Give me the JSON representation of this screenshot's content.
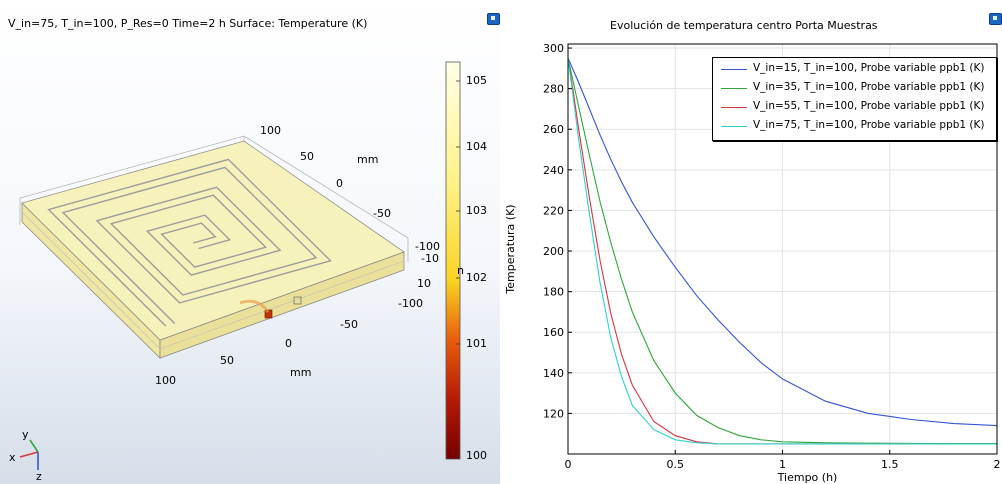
{
  "left_panel": {
    "title": "V_in=75, T_in=100, P_Res=0 Time=2 h   Surface: Temperature (K)",
    "colorbar": {
      "ticks": [
        "105",
        "104",
        "103",
        "102",
        "101",
        "100"
      ],
      "stray_label": "n",
      "colors": [
        "#ffffe6",
        "#fff28a",
        "#f9d423",
        "#e85d0d",
        "#b51a06",
        "#760000"
      ]
    },
    "axis_labels": {
      "y_axis_ticks": [
        "100",
        "50",
        "0",
        "-50",
        "-100"
      ],
      "x_axis_ticks": [
        "100",
        "50",
        "0",
        "-50",
        "-100"
      ],
      "z_axis_ticks": [
        "-10",
        "10"
      ],
      "unit_back": "mm",
      "unit_front": "mm"
    },
    "triad": {
      "y": "y",
      "x": "x",
      "z": "z"
    },
    "plate_color": "#f7f2b8",
    "channel_color": "#9c9c9c",
    "hotspot_color": "#c0320a"
  },
  "right_panel": {
    "title": "Evolución de temperatura centro Porta Muestras",
    "chart_data": {
      "type": "line",
      "title": "Evolución de temperatura centro Porta Muestras",
      "xlabel": "Tiempo (h)",
      "ylabel": "Temperatura (K)",
      "xlim": [
        0,
        2.0
      ],
      "ylim": [
        100,
        302
      ],
      "x_ticks": [
        "0",
        "0.5",
        "1",
        "1.5",
        "2"
      ],
      "y_ticks": [
        "120",
        "140",
        "160",
        "180",
        "200",
        "220",
        "240",
        "260",
        "280",
        "300"
      ],
      "grid": true,
      "legend_position": "top-right",
      "x": [
        0,
        0.025,
        0.05,
        0.1,
        0.15,
        0.2,
        0.25,
        0.3,
        0.4,
        0.5,
        0.6,
        0.7,
        0.8,
        0.9,
        1.0,
        1.2,
        1.4,
        1.6,
        1.8,
        2.0
      ],
      "series": [
        {
          "name": "V_in=15, T_in=100, Probe variable ppb1 (K)",
          "color": "#3455d6",
          "values": [
            295,
            289,
            283,
            270,
            257,
            245,
            234,
            224,
            207,
            192,
            178,
            166,
            155,
            145,
            137,
            126,
            120,
            117,
            115,
            114
          ]
        },
        {
          "name": "V_in=35, T_in=100, Probe variable ppb1 (K)",
          "color": "#2ea83a",
          "values": [
            295,
            283,
            271,
            247,
            224,
            204,
            186,
            170,
            146,
            130,
            119,
            113,
            109,
            107,
            106,
            105.5,
            105.3,
            105.2,
            105.1,
            105.1
          ]
        },
        {
          "name": "V_in=55, T_in=100, Probe variable ppb1 (K)",
          "color": "#d9343a",
          "values": [
            295,
            278,
            260,
            226,
            195,
            169,
            149,
            134,
            116,
            109,
            106,
            105,
            105,
            105,
            105,
            105,
            105,
            105,
            105,
            105
          ]
        },
        {
          "name": "V_in=75, T_in=100, Probe variable ppb1 (K)",
          "color": "#2ed1cf",
          "values": [
            295,
            275,
            255,
            218,
            184,
            157,
            138,
            124,
            112,
            107,
            105.5,
            105,
            105,
            105,
            105,
            105,
            105,
            105,
            105,
            105
          ]
        }
      ]
    }
  }
}
